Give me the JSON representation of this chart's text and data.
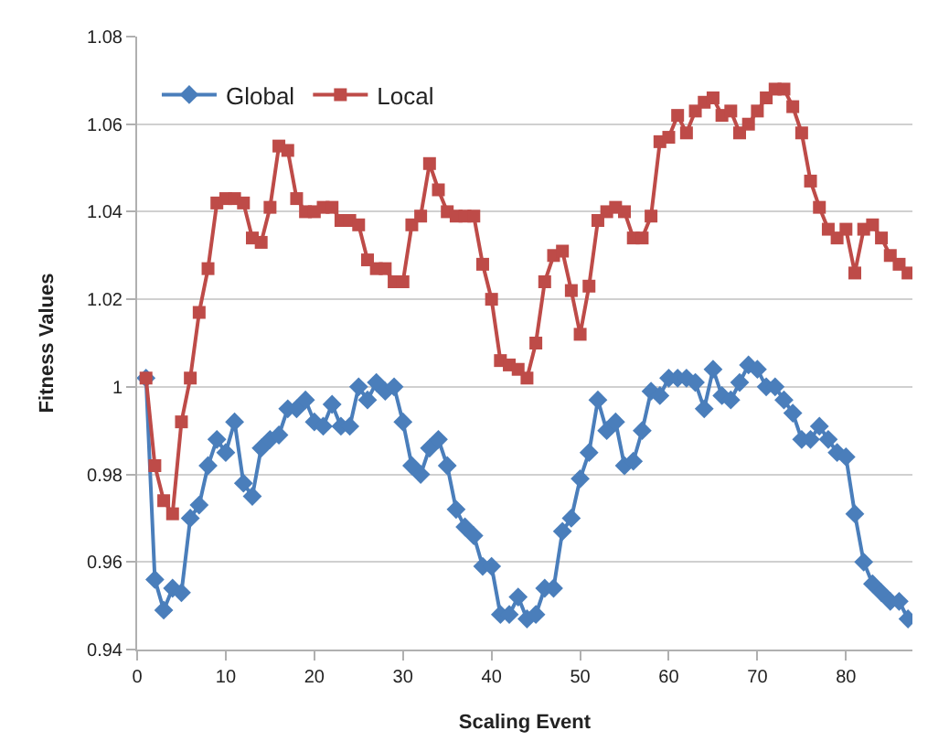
{
  "chart_data": {
    "type": "line",
    "xlabel": "Scaling Event",
    "ylabel": "Fitness Values",
    "x": [
      1,
      2,
      3,
      4,
      5,
      6,
      7,
      8,
      9,
      10,
      11,
      12,
      13,
      14,
      15,
      16,
      17,
      18,
      19,
      20,
      21,
      22,
      23,
      24,
      25,
      26,
      27,
      28,
      29,
      30,
      31,
      32,
      33,
      34,
      35,
      36,
      37,
      38,
      39,
      40,
      41,
      42,
      43,
      44,
      45,
      46,
      47,
      48,
      49,
      50,
      51,
      52,
      53,
      54,
      55,
      56,
      57,
      58,
      59,
      60,
      61,
      62,
      63,
      64,
      65,
      66,
      67,
      68,
      69,
      70,
      71,
      72,
      73,
      74,
      75,
      76,
      77,
      78,
      79,
      80,
      81,
      82,
      83,
      84,
      85,
      86,
      87
    ],
    "series": [
      {
        "name": "Global",
        "color": "#4a7ebb",
        "marker": "diamond",
        "values": [
          1.002,
          0.956,
          0.949,
          0.954,
          0.953,
          0.97,
          0.973,
          0.982,
          0.988,
          0.985,
          0.992,
          0.978,
          0.975,
          0.986,
          0.988,
          0.989,
          0.995,
          0.995,
          0.997,
          0.992,
          0.991,
          0.996,
          0.991,
          0.991,
          1.0,
          0.997,
          1.001,
          0.999,
          1.0,
          0.992,
          0.982,
          0.98,
          0.986,
          0.988,
          0.982,
          0.972,
          0.968,
          0.966,
          0.959,
          0.959,
          0.948,
          0.948,
          0.952,
          0.947,
          0.948,
          0.954,
          0.954,
          0.967,
          0.97,
          0.979,
          0.985,
          0.997,
          0.99,
          0.992,
          0.982,
          0.983,
          0.99,
          0.999,
          0.998,
          1.002,
          1.002,
          1.002,
          1.001,
          0.995,
          1.004,
          0.998,
          0.997,
          1.001,
          1.005,
          1.004,
          1.0,
          1.0,
          0.997,
          0.994,
          0.988,
          0.988,
          0.991,
          0.988,
          0.985,
          0.984,
          0.971,
          0.96,
          0.955,
          0.953,
          0.951,
          0.951,
          0.947
        ]
      },
      {
        "name": "Local",
        "color": "#be4b48",
        "marker": "square",
        "values": [
          1.002,
          0.982,
          0.974,
          0.971,
          0.992,
          1.002,
          1.017,
          1.027,
          1.042,
          1.043,
          1.043,
          1.042,
          1.034,
          1.033,
          1.041,
          1.055,
          1.054,
          1.043,
          1.04,
          1.04,
          1.041,
          1.041,
          1.038,
          1.038,
          1.037,
          1.029,
          1.027,
          1.027,
          1.024,
          1.024,
          1.037,
          1.039,
          1.051,
          1.045,
          1.04,
          1.039,
          1.039,
          1.039,
          1.028,
          1.02,
          1.006,
          1.005,
          1.004,
          1.002,
          1.01,
          1.024,
          1.03,
          1.031,
          1.022,
          1.012,
          1.023,
          1.038,
          1.04,
          1.041,
          1.04,
          1.034,
          1.034,
          1.039,
          1.056,
          1.057,
          1.062,
          1.058,
          1.063,
          1.065,
          1.066,
          1.062,
          1.063,
          1.058,
          1.06,
          1.063,
          1.066,
          1.068,
          1.068,
          1.064,
          1.058,
          1.047,
          1.041,
          1.036,
          1.034,
          1.036,
          1.026,
          1.036,
          1.037,
          1.034,
          1.03,
          1.028,
          1.026
        ]
      }
    ],
    "xlim": [
      0,
      87.5
    ],
    "xticks": [
      0,
      10,
      20,
      30,
      40,
      50,
      60,
      70,
      80
    ],
    "ylim": [
      0.94,
      1.08
    ],
    "yticks": [
      0.94,
      0.96,
      0.98,
      1,
      1.02,
      1.04,
      1.06,
      1.08
    ],
    "grid": "y",
    "legend": "top left",
    "line_style": "solid"
  }
}
